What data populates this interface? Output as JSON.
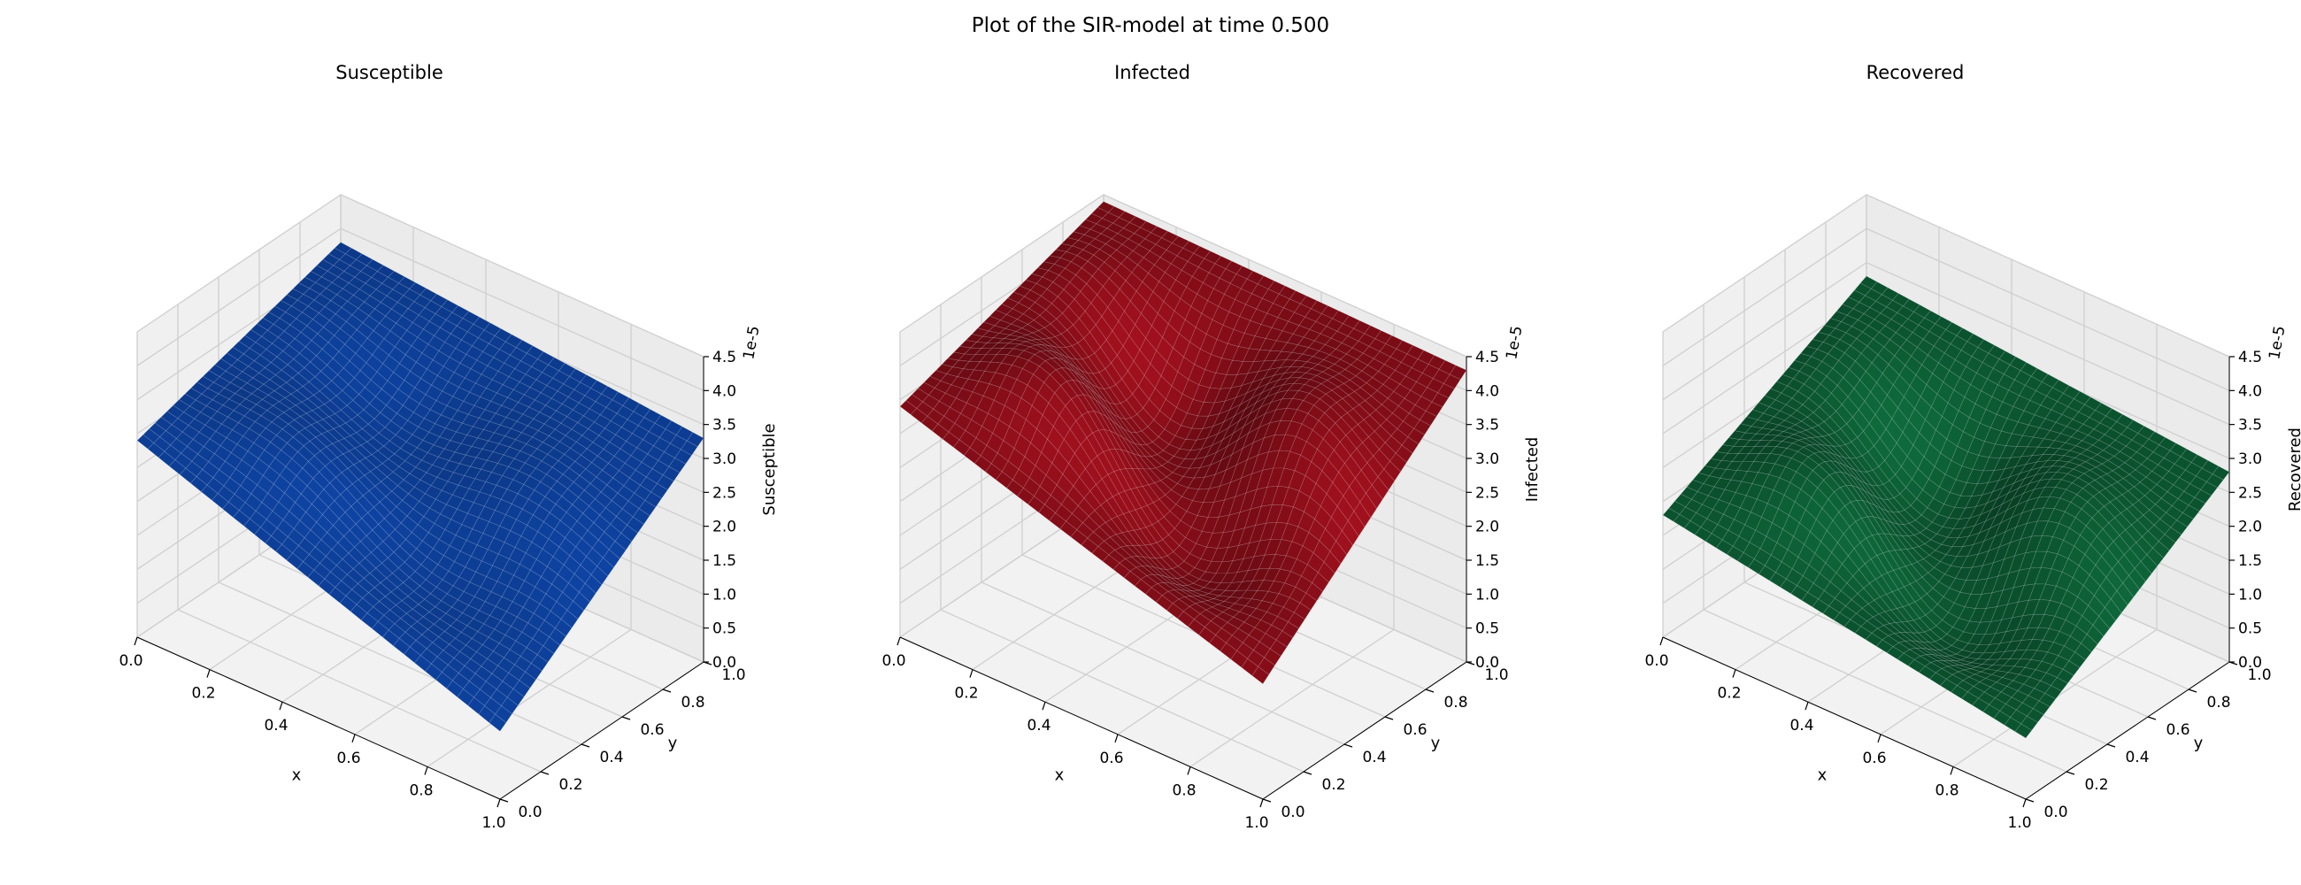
{
  "figure": {
    "suptitle": "Plot of the SIR-model at time 0.500"
  },
  "chart_data": [
    {
      "type": "surface",
      "title": "Susceptible",
      "xlabel": "x",
      "ylabel": "y",
      "zlabel": "Susceptible",
      "offset_text": "1e-5",
      "xlim": [
        0,
        1
      ],
      "ylim": [
        0,
        1
      ],
      "zlim": [
        0,
        4.5
      ],
      "x_ticks": [
        "0.0",
        "0.2",
        "0.4",
        "0.6",
        "0.8",
        "1.0"
      ],
      "y_ticks": [
        "0.0",
        "0.2",
        "0.4",
        "0.6",
        "0.8",
        "1.0"
      ],
      "z_ticks": [
        "0.0",
        "0.5",
        "1.0",
        "1.5",
        "2.0",
        "2.5",
        "3.0",
        "3.5",
        "4.0",
        "4.5"
      ],
      "color": "#0b3580",
      "corner_values": {
        "x0y0": 2.9,
        "x1y0": 1.0,
        "x0y1": 3.8,
        "x1y1": 3.3
      },
      "surface_model": {
        "base": 2.75,
        "a": 0.35,
        "b": 0.25,
        "c": 0.2
      },
      "grid": true
    },
    {
      "type": "surface",
      "title": "Infected",
      "xlabel": "x",
      "ylabel": "y",
      "zlabel": "Infected",
      "offset_text": "1e-5",
      "xlim": [
        0,
        1
      ],
      "ylim": [
        0,
        1
      ],
      "zlim": [
        0,
        4.5
      ],
      "x_ticks": [
        "0.0",
        "0.2",
        "0.4",
        "0.6",
        "0.8",
        "1.0"
      ],
      "y_ticks": [
        "0.0",
        "0.2",
        "0.4",
        "0.6",
        "0.8",
        "1.0"
      ],
      "z_ticks": [
        "0.0",
        "0.5",
        "1.0",
        "1.5",
        "2.0",
        "2.5",
        "3.0",
        "3.5",
        "4.0",
        "4.5"
      ],
      "color": "#6e0b14",
      "corner_values": {
        "x0y0": 3.4,
        "x1y0": 1.7,
        "x0y1": 4.4,
        "x1y1": 4.3
      },
      "surface_model": {
        "base": 2.6,
        "a": 1.0,
        "b": 0.9,
        "c": 0.6
      },
      "grid": true
    },
    {
      "type": "surface",
      "title": "Recovered",
      "xlabel": "x",
      "ylabel": "y",
      "zlabel": "Recovered",
      "offset_text": "1e-5",
      "xlim": [
        0,
        1
      ],
      "ylim": [
        0,
        1
      ],
      "zlim": [
        0,
        4.5
      ],
      "x_ticks": [
        "0.0",
        "0.2",
        "0.4",
        "0.6",
        "0.8",
        "1.0"
      ],
      "y_ticks": [
        "0.0",
        "0.2",
        "0.4",
        "0.6",
        "0.8",
        "1.0"
      ],
      "z_ticks": [
        "0.0",
        "0.5",
        "1.0",
        "1.5",
        "2.0",
        "2.5",
        "3.0",
        "3.5",
        "4.0",
        "4.5"
      ],
      "color": "#0a4a2a",
      "corner_values": {
        "x0y0": 1.8,
        "x1y0": 0.9,
        "x0y1": 3.3,
        "x1y1": 2.8
      },
      "surface_model": {
        "base": 1.6,
        "a": 0.9,
        "b": 0.8,
        "c": 0.5
      },
      "grid": true
    }
  ]
}
